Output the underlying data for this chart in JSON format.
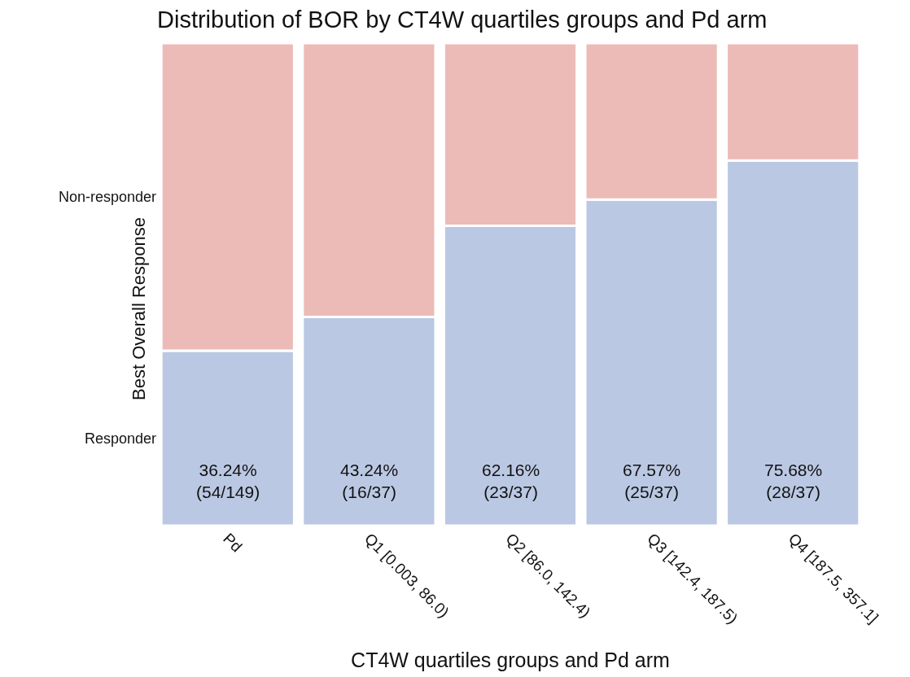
{
  "chart_data": {
    "type": "bar",
    "title": "Distribution of BOR by CT4W quartiles groups and Pd arm",
    "xlabel": "CT4W quartiles groups and Pd arm",
    "ylabel": "Best Overall Response",
    "categories": [
      "Pd",
      "Q1 [0.003, 86.0)",
      "Q2 [86.0, 142.4)",
      "Q3 [142.4, 187.5)",
      "Q4 [187.5, 357.1]"
    ],
    "stacked": true,
    "series": [
      {
        "name": "Responder",
        "color": "#bbc8e3",
        "values": [
          36.24,
          43.24,
          62.16,
          67.57,
          75.68
        ],
        "value_labels": [
          "36.24%\n(54/149)",
          "43.24%\n(16/37)",
          "62.16%\n(23/37)",
          "67.57%\n(25/37)",
          "75.68%\n(28/37)"
        ]
      },
      {
        "name": "Non-responder",
        "color": "#ecbbb7",
        "values": [
          63.76,
          56.76,
          37.84,
          32.43,
          24.32
        ]
      }
    ]
  }
}
